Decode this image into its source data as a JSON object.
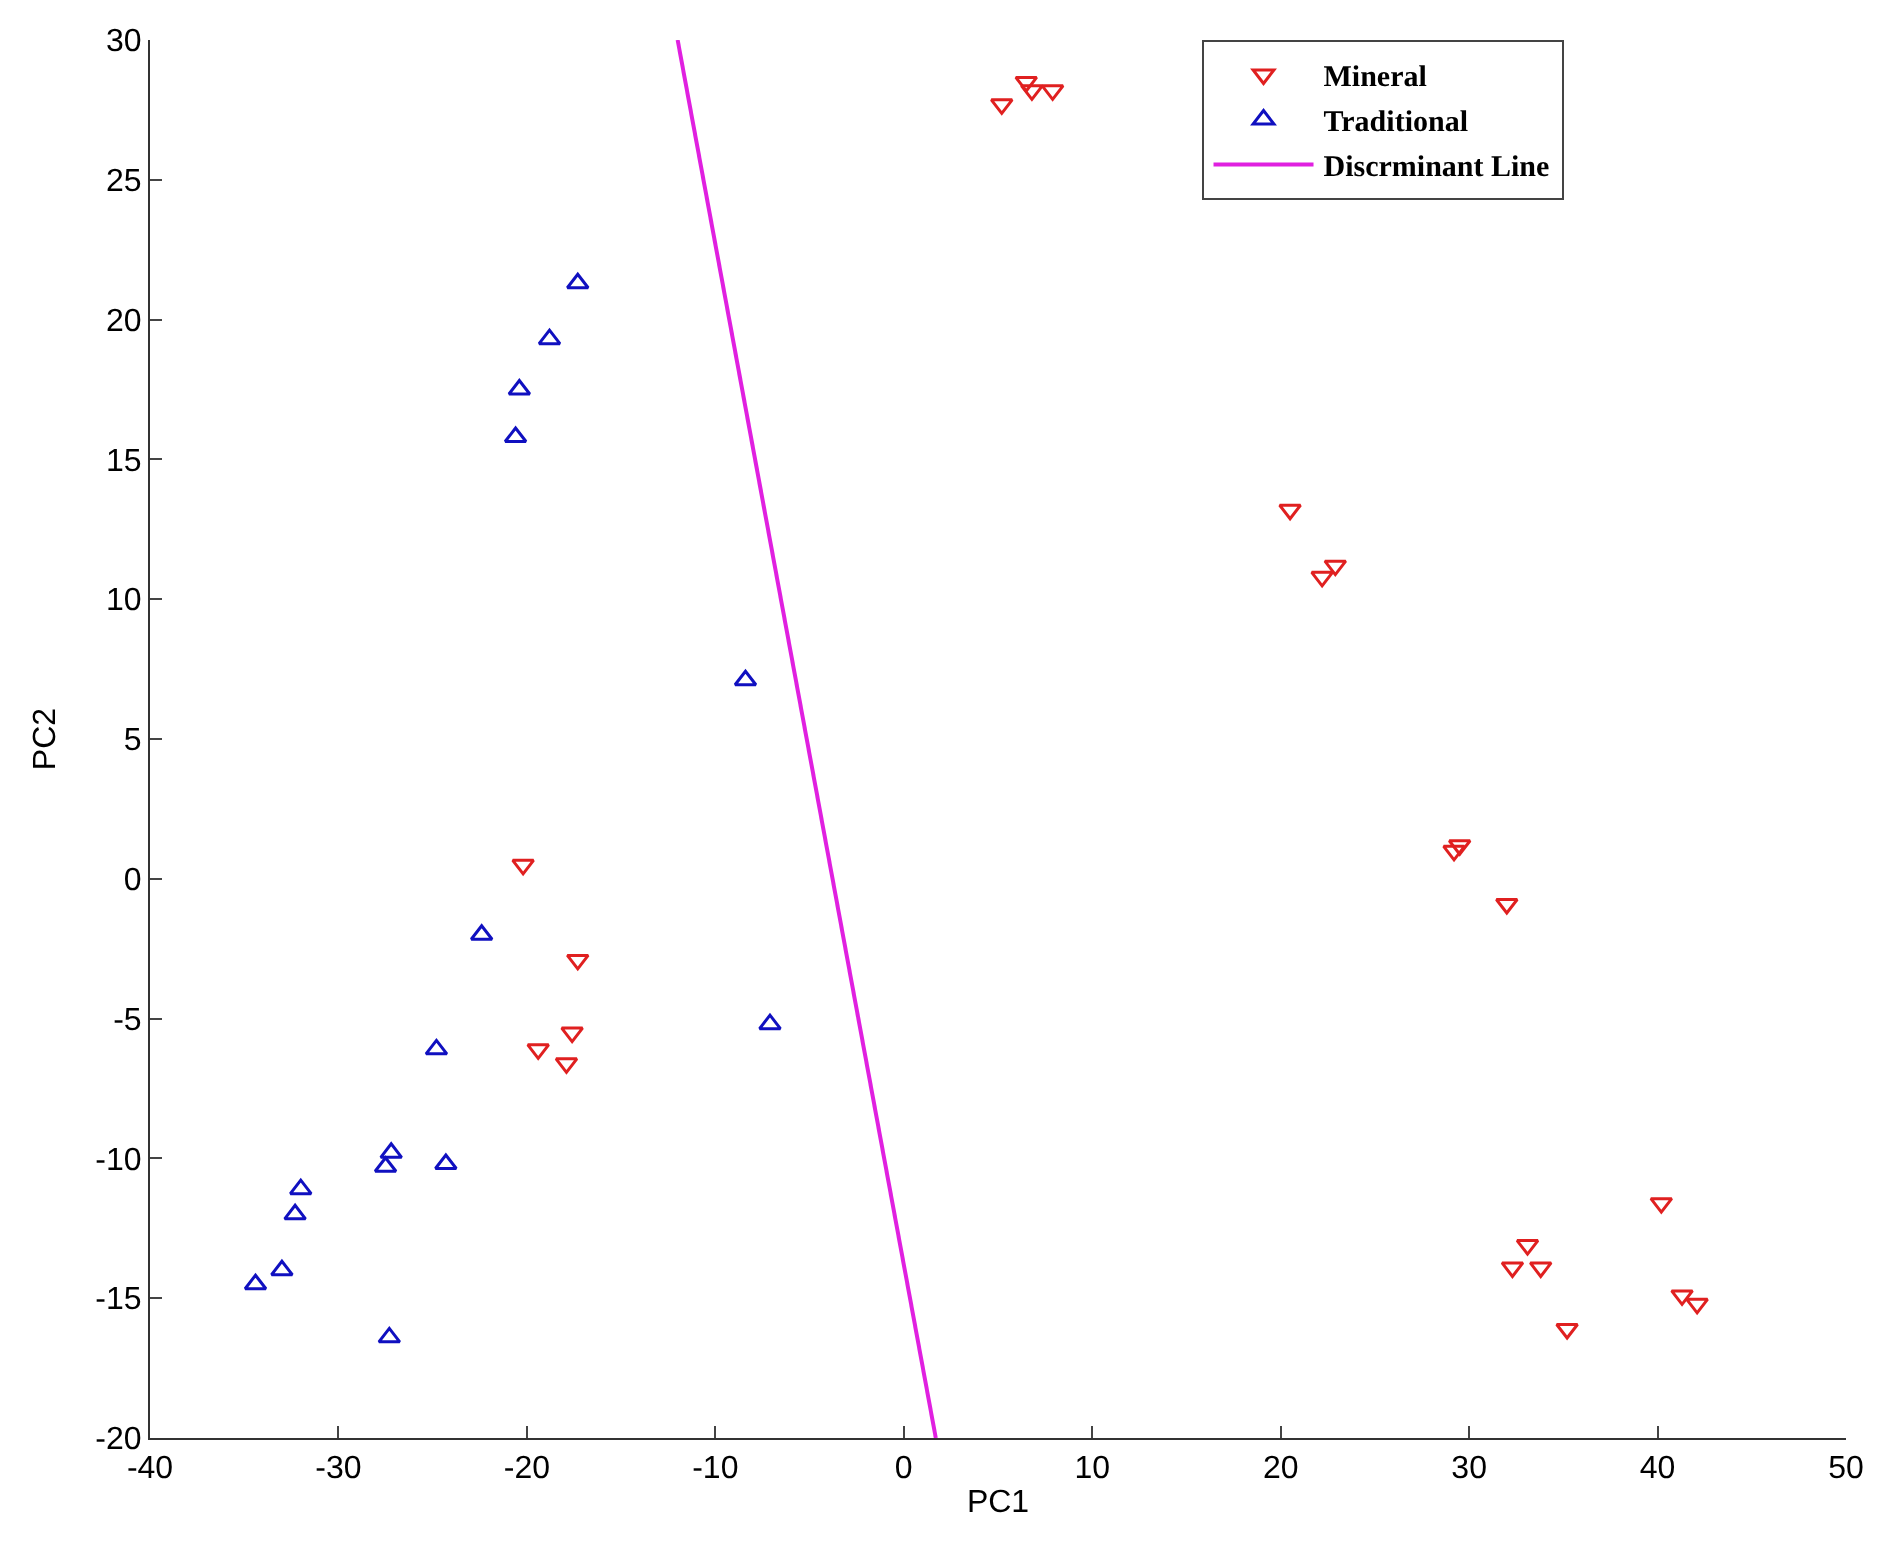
{
  "chart_data": {
    "type": "scatter",
    "xlabel": "PC1",
    "ylabel": "PC2",
    "xlim": [
      -40,
      50
    ],
    "xticks": [
      -40,
      -30,
      -20,
      -10,
      0,
      10,
      20,
      30,
      40,
      50
    ],
    "ylim": [
      -20,
      30
    ],
    "yticks": [
      -20,
      -15,
      -10,
      -5,
      0,
      5,
      10,
      15,
      20,
      25,
      30
    ],
    "legend": "top right",
    "series": [
      {
        "name": "Mineral",
        "color": "#e02020",
        "marker": "triangle-down",
        "x": [
          5.2,
          6.5,
          6.8,
          7.9,
          20.5,
          22.2,
          22.9,
          29.2,
          29.5,
          32.0,
          40.2,
          33.1,
          32.3,
          33.8,
          41.3,
          42.1,
          35.2,
          -20.2,
          -17.3,
          -19.4,
          -17.6,
          -17.9
        ],
        "values": [
          27.7,
          28.5,
          28.2,
          28.2,
          13.2,
          10.8,
          11.2,
          1.0,
          1.2,
          -0.9,
          -11.6,
          -13.1,
          -13.9,
          -13.9,
          -14.9,
          -15.2,
          -16.1,
          0.5,
          -2.9,
          -6.1,
          -5.5,
          -6.6
        ]
      },
      {
        "name": "Traditional",
        "color": "#1010c0",
        "marker": "triangle",
        "x": [
          -17.3,
          -18.8,
          -20.4,
          -20.6,
          -8.4,
          -7.1,
          -22.4,
          -24.8,
          -27.2,
          -27.5,
          -24.3,
          -32.0,
          -32.3,
          -33.0,
          -34.4,
          -27.3
        ],
        "values": [
          21.3,
          19.3,
          17.5,
          15.8,
          7.1,
          -5.2,
          -2.0,
          -6.1,
          -9.8,
          -10.3,
          -10.2,
          -11.1,
          -12.0,
          -14.0,
          -14.5,
          -16.4
        ]
      },
      {
        "name": "Discrminant Line",
        "type": "line",
        "color": "#e020e0",
        "marker": "none",
        "line_style": "solid",
        "x": [
          -12.0,
          1.7
        ],
        "values": [
          30,
          -20
        ]
      }
    ]
  }
}
